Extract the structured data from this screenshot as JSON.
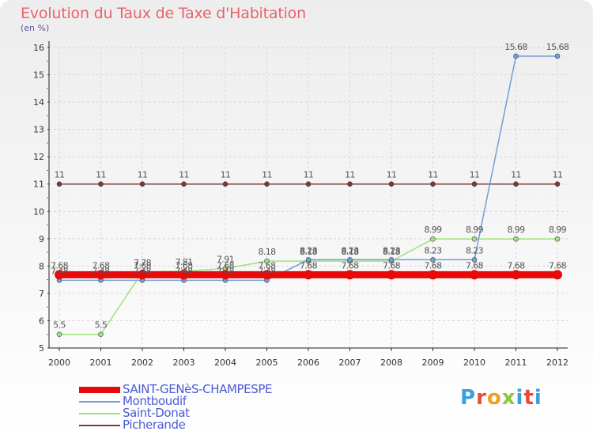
{
  "header": {
    "title": "Evolution du Taux de Taxe d'Habitation",
    "unit": "(en %)"
  },
  "logo": {
    "text": "Proxiti",
    "letter_colors": [
      "#3aa0dc",
      "#e84b3a",
      "#f0a020",
      "#8cc63f",
      "#3aa0dc",
      "#e84b3a",
      "#3aa0dc"
    ]
  },
  "chart_data": {
    "type": "line",
    "x": [
      "2000",
      "2001",
      "2002",
      "2003",
      "2004",
      "2005",
      "2006",
      "2007",
      "2008",
      "2009",
      "2010",
      "2011",
      "2012"
    ],
    "ylim": [
      5,
      16
    ],
    "yticks": [
      "5",
      "6",
      "7",
      "8",
      "9",
      "10",
      "11",
      "12",
      "13",
      "14",
      "15",
      "16"
    ],
    "grid": true,
    "legend_position": "bottom-left",
    "series": [
      {
        "name": "SAINT-GENèS-CHAMPESPE",
        "color": "#e8090a",
        "values": [
          7.68,
          7.68,
          7.68,
          7.68,
          7.68,
          7.68,
          7.68,
          7.68,
          7.68,
          7.68,
          7.68,
          7.68,
          7.68
        ],
        "labels": [
          "7.68",
          "7.68",
          "7.68",
          "7.68",
          "7.68",
          "7.68",
          "7.68",
          "7.68",
          "7.68",
          "7.68",
          "7.68",
          "7.68",
          "7.68"
        ]
      },
      {
        "name": "Montboudif",
        "color": "#6ea0d8",
        "values": [
          7.48,
          7.48,
          7.48,
          7.48,
          7.48,
          7.48,
          8.23,
          8.23,
          8.23,
          8.23,
          8.23,
          15.68,
          15.68
        ],
        "labels": [
          "7.48",
          "7.48",
          "7.48",
          "7.48",
          "7.48",
          "7.48",
          "8.23",
          "8.23",
          "8.23",
          "8.23",
          "8.23",
          "15.68",
          "15.68"
        ]
      },
      {
        "name": "Saint-Donat",
        "color": "#9ee27e",
        "values": [
          5.5,
          5.5,
          7.78,
          7.81,
          7.91,
          8.18,
          8.18,
          8.18,
          8.18,
          8.99,
          8.99,
          8.99,
          8.99
        ],
        "labels": [
          "5.5",
          "5.5",
          "7.78",
          "7.81",
          "7.91",
          "8.18",
          "8.18",
          "8.18",
          "8.18",
          "8.99",
          "8.99",
          "8.99",
          "8.99"
        ]
      },
      {
        "name": "Picherande",
        "color": "#7a3a3a",
        "values": [
          11,
          11,
          11,
          11,
          11,
          11,
          11,
          11,
          11,
          11,
          11,
          11,
          11
        ],
        "labels": [
          "11",
          "11",
          "11",
          "11",
          "11",
          "11",
          "11",
          "11",
          "11",
          "11",
          "11",
          "11",
          "11"
        ]
      }
    ]
  }
}
